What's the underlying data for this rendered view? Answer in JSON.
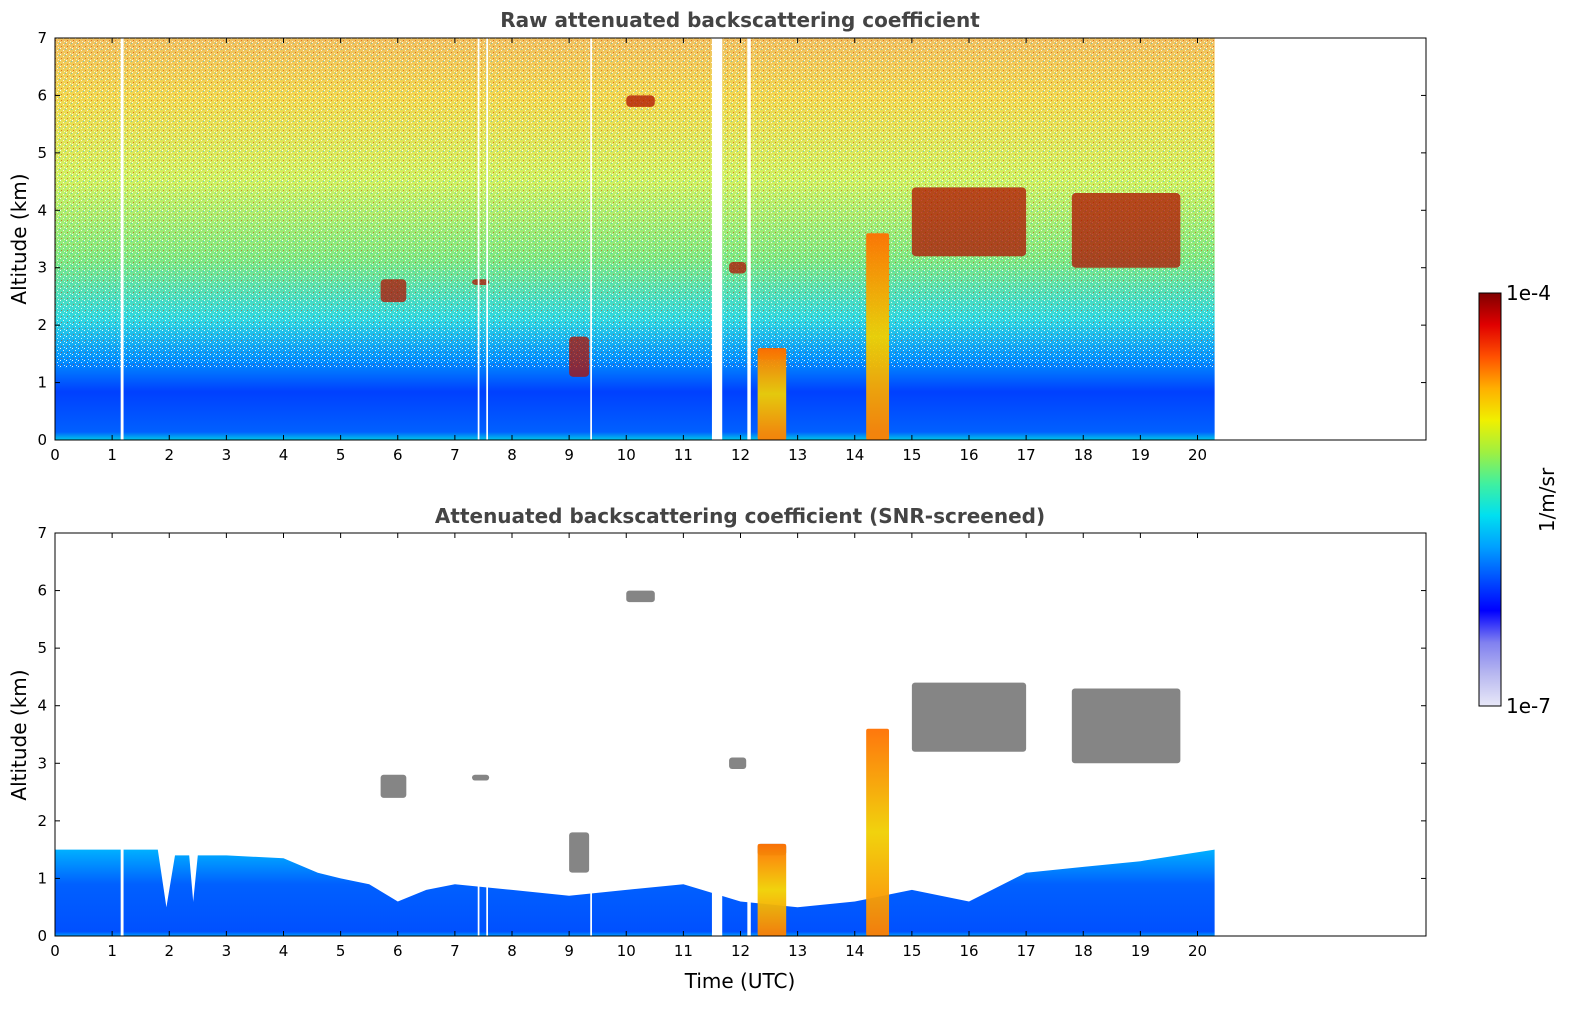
{
  "chart_data": [
    {
      "type": "heatmap",
      "title": "Raw attenuated backscattering coefficient",
      "xlabel": "",
      "ylabel": "Altitude (km)",
      "xlim": [
        0,
        24
      ],
      "ylim": [
        0,
        7
      ],
      "x_ticks": [
        "0",
        "1",
        "2",
        "3",
        "4",
        "5",
        "6",
        "7",
        "8",
        "9",
        "10",
        "11",
        "12",
        "13",
        "14",
        "15",
        "16",
        "17",
        "18",
        "19",
        "20"
      ],
      "y_ticks": [
        "0",
        "1",
        "2",
        "3",
        "4",
        "5",
        "6",
        "7"
      ],
      "data_extent_x": [
        0,
        20.3
      ],
      "data_gaps": [
        [
          1.15,
          1.2
        ],
        [
          7.4,
          7.43
        ],
        [
          7.55,
          7.58
        ],
        [
          9.37,
          9.4
        ],
        [
          11.5,
          11.68
        ],
        [
          12.12,
          12.18
        ]
      ],
      "features": [
        {
          "kind": "low cloud",
          "x": [
            5.7,
            6.15
          ],
          "alt_km": [
            2.4,
            2.8
          ]
        },
        {
          "kind": "low cloud",
          "x": [
            7.3,
            7.6
          ],
          "alt_km": [
            2.7,
            2.8
          ]
        },
        {
          "kind": "low cloud",
          "x": [
            9.0,
            9.35
          ],
          "alt_km": [
            1.1,
            1.8
          ]
        },
        {
          "kind": "low cloud",
          "x": [
            12.3,
            12.8
          ],
          "alt_km": [
            1.4,
            1.6
          ]
        },
        {
          "kind": "cloud",
          "x": [
            10.0,
            10.5
          ],
          "alt_km": [
            5.8,
            6.0
          ]
        },
        {
          "kind": "cloud",
          "x": [
            11.8,
            12.1
          ],
          "alt_km": [
            2.9,
            3.1
          ]
        },
        {
          "kind": "precipitation/virga",
          "x": [
            14.2,
            14.6
          ],
          "alt_km": [
            0,
            3.6
          ]
        },
        {
          "kind": "precipitation/virga",
          "x": [
            12.3,
            12.8
          ],
          "alt_km": [
            0,
            1.6
          ]
        },
        {
          "kind": "mid cloud",
          "x": [
            15.0,
            17.0
          ],
          "alt_km": [
            3.2,
            4.4
          ]
        },
        {
          "kind": "mid cloud",
          "x": [
            17.8,
            19.7
          ],
          "alt_km": [
            3.0,
            4.3
          ]
        }
      ]
    },
    {
      "type": "heatmap",
      "title": "Attenuated backscattering coefficient (SNR-screened)",
      "xlabel": "Time (UTC)",
      "ylabel": "Altitude (km)",
      "xlim": [
        0,
        24
      ],
      "ylim": [
        0,
        7
      ],
      "x_ticks": [
        "0",
        "1",
        "2",
        "3",
        "4",
        "5",
        "6",
        "7",
        "8",
        "9",
        "10",
        "11",
        "12",
        "13",
        "14",
        "15",
        "16",
        "17",
        "18",
        "19",
        "20"
      ],
      "y_ticks": [
        "0",
        "1",
        "2",
        "3",
        "4",
        "5",
        "6",
        "7"
      ],
      "boundary_layer_top_km": [
        [
          0,
          1.5
        ],
        [
          1,
          1.5
        ],
        [
          1.8,
          1.5
        ],
        [
          1.95,
          0.5
        ],
        [
          2.1,
          1.4
        ],
        [
          2.35,
          1.4
        ],
        [
          2.42,
          0.6
        ],
        [
          2.5,
          1.4
        ],
        [
          3,
          1.4
        ],
        [
          4,
          1.35
        ],
        [
          4.6,
          1.1
        ],
        [
          5,
          1.0
        ],
        [
          5.5,
          0.9
        ],
        [
          6.0,
          0.6
        ],
        [
          6.5,
          0.8
        ],
        [
          7.0,
          0.9
        ],
        [
          8,
          0.8
        ],
        [
          9,
          0.7
        ],
        [
          10,
          0.8
        ],
        [
          11,
          0.9
        ],
        [
          12,
          0.6
        ],
        [
          13,
          0.5
        ],
        [
          14,
          0.6
        ],
        [
          15,
          0.8
        ],
        [
          16,
          0.6
        ],
        [
          17,
          1.1
        ],
        [
          18,
          1.2
        ],
        [
          19,
          1.3
        ],
        [
          20.3,
          1.5
        ]
      ]
    }
  ],
  "colorbar": {
    "label": "1/m/sr",
    "max_label": "1e-4",
    "min_label": "1e-7",
    "colors": [
      "#e8e8f8",
      "#b8b8f0",
      "#8080f0",
      "#0000ff",
      "#0050ff",
      "#00a0ff",
      "#00e0f0",
      "#40f0a0",
      "#a0f040",
      "#f0f000",
      "#ffb000",
      "#ff5000",
      "#e00000",
      "#800000"
    ]
  }
}
